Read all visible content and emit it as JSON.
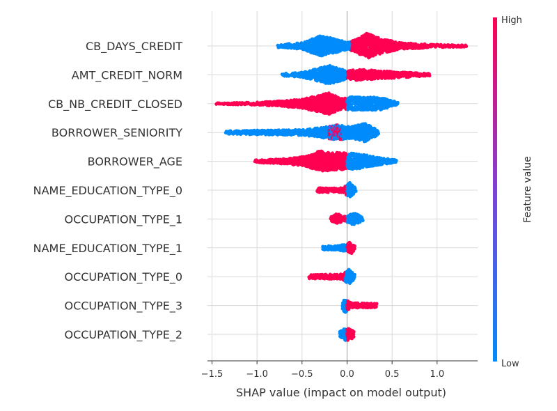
{
  "chart_data": {
    "type": "scatter",
    "subtype": "shap-beeswarm",
    "title": "",
    "xlabel": "SHAP value (impact on model output)",
    "ylabel": "",
    "xlim": [
      -1.55,
      1.45
    ],
    "xticks": [
      -1.5,
      -1.0,
      -0.5,
      0.0,
      0.5,
      1.0
    ],
    "xtick_labels": [
      "−1.5",
      "−1.0",
      "−0.5",
      "0.0",
      "0.5",
      "1.0"
    ],
    "grid": true,
    "colorbar": {
      "title": "Feature value",
      "high_label": "High",
      "low_label": "Low",
      "high_color": "#ff0052",
      "low_color": "#008bfb"
    },
    "features": [
      {
        "name": "CB_DAYS_CREDIT",
        "min": -0.77,
        "max": 1.33,
        "high_side": "positive",
        "high_range": [
          0.05,
          1.3
        ],
        "low_range": [
          -0.77,
          0.05
        ],
        "density": [
          [
            -0.77,
            0.12
          ],
          [
            -0.5,
            0.25
          ],
          [
            -0.3,
            0.8
          ],
          [
            -0.15,
            0.6
          ],
          [
            0.0,
            0.3
          ],
          [
            0.1,
            0.5
          ],
          [
            0.22,
            1.0
          ],
          [
            0.4,
            0.55
          ],
          [
            0.6,
            0.25
          ],
          [
            0.9,
            0.15
          ],
          [
            1.3,
            0.08
          ]
        ]
      },
      {
        "name": "AMT_CREDIT_NORM",
        "min": -0.72,
        "max": 0.92,
        "high_side": "positive",
        "high_range": [
          0.1,
          0.92
        ],
        "low_range": [
          -0.72,
          0.0
        ],
        "density": [
          [
            -0.72,
            0.1
          ],
          [
            -0.5,
            0.2
          ],
          [
            -0.35,
            0.45
          ],
          [
            -0.2,
            0.75
          ],
          [
            -0.1,
            0.55
          ],
          [
            0.0,
            0.3
          ],
          [
            0.1,
            0.45
          ],
          [
            0.3,
            0.35
          ],
          [
            0.55,
            0.25
          ],
          [
            0.9,
            0.1
          ]
        ]
      },
      {
        "name": "CB_NB_CREDIT_CLOSED",
        "min": -1.45,
        "max": 0.57,
        "high_side": "negative",
        "high_range": [
          -1.45,
          -0.05
        ],
        "low_range": [
          0.0,
          0.57
        ],
        "density": [
          [
            -1.45,
            0.05
          ],
          [
            -1.1,
            0.1
          ],
          [
            -0.8,
            0.18
          ],
          [
            -0.5,
            0.35
          ],
          [
            -0.35,
            0.6
          ],
          [
            -0.2,
            0.85
          ],
          [
            -0.05,
            0.4
          ],
          [
            0.05,
            0.55
          ],
          [
            0.2,
            0.5
          ],
          [
            0.35,
            0.55
          ],
          [
            0.57,
            0.1
          ]
        ]
      },
      {
        "name": "BORROWER_SENIORITY",
        "min": -1.35,
        "max": 0.35,
        "high_side": "negative",
        "high_range": [
          -0.2,
          -0.05
        ],
        "low_range": [
          -1.35,
          0.35
        ],
        "density": [
          [
            -1.35,
            0.12
          ],
          [
            -1.0,
            0.18
          ],
          [
            -0.7,
            0.2
          ],
          [
            -0.45,
            0.25
          ],
          [
            -0.3,
            0.4
          ],
          [
            -0.1,
            0.6
          ],
          [
            0.05,
            0.45
          ],
          [
            0.2,
            0.75
          ],
          [
            0.35,
            0.15
          ]
        ]
      },
      {
        "name": "BORROWER_AGE",
        "min": -1.02,
        "max": 0.55,
        "high_side": "negative",
        "high_range": [
          -1.02,
          -0.05
        ],
        "low_range": [
          0.0,
          0.55
        ],
        "density": [
          [
            -1.02,
            0.1
          ],
          [
            -0.7,
            0.2
          ],
          [
            -0.45,
            0.4
          ],
          [
            -0.3,
            0.85
          ],
          [
            -0.15,
            0.7
          ],
          [
            0.0,
            0.65
          ],
          [
            0.15,
            0.6
          ],
          [
            0.3,
            0.35
          ],
          [
            0.55,
            0.1
          ]
        ]
      },
      {
        "name": "NAME_EDUCATION_TYPE_0",
        "min": -0.33,
        "max": 0.1,
        "high_side": "negative",
        "high_range": [
          -0.33,
          -0.05
        ],
        "low_range": [
          0.0,
          0.1
        ],
        "density": [
          [
            -0.33,
            0.18
          ],
          [
            -0.15,
            0.18
          ],
          [
            -0.05,
            0.2
          ],
          [
            0.03,
            0.6
          ],
          [
            0.1,
            0.15
          ]
        ]
      },
      {
        "name": "OCCUPATION_TYPE_1",
        "min": -0.18,
        "max": 0.18,
        "high_side": "negative",
        "high_range": [
          -0.18,
          -0.05
        ],
        "low_range": [
          0.0,
          0.18
        ],
        "density": [
          [
            -0.18,
            0.15
          ],
          [
            -0.11,
            0.45
          ],
          [
            -0.05,
            0.2
          ],
          [
            0.0,
            0.25
          ],
          [
            0.08,
            0.5
          ],
          [
            0.16,
            0.2
          ]
        ]
      },
      {
        "name": "NAME_EDUCATION_TYPE_1",
        "min": -0.27,
        "max": 0.09,
        "high_side": "positive",
        "high_range": [
          0.0,
          0.09
        ],
        "low_range": [
          -0.27,
          0.0
        ],
        "density": [
          [
            -0.27,
            0.15
          ],
          [
            -0.1,
            0.18
          ],
          [
            0.0,
            0.3
          ],
          [
            0.04,
            0.55
          ],
          [
            0.09,
            0.15
          ]
        ]
      },
      {
        "name": "OCCUPATION_TYPE_0",
        "min": -0.42,
        "max": 0.09,
        "high_side": "negative",
        "high_range": [
          -0.42,
          -0.05
        ],
        "low_range": [
          -0.02,
          0.09
        ],
        "density": [
          [
            -0.42,
            0.15
          ],
          [
            -0.2,
            0.18
          ],
          [
            -0.05,
            0.2
          ],
          [
            0.02,
            0.6
          ],
          [
            0.09,
            0.15
          ]
        ]
      },
      {
        "name": "OCCUPATION_TYPE_3",
        "min": -0.05,
        "max": 0.33,
        "high_side": "positive",
        "high_range": [
          0.02,
          0.33
        ],
        "low_range": [
          -0.05,
          0.0
        ],
        "density": [
          [
            -0.05,
            0.4
          ],
          [
            -0.02,
            0.55
          ],
          [
            0.05,
            0.2
          ],
          [
            0.2,
            0.2
          ],
          [
            0.33,
            0.15
          ]
        ]
      },
      {
        "name": "OCCUPATION_TYPE_2",
        "min": -0.08,
        "max": 0.08,
        "high_side": "positive",
        "high_range": [
          0.0,
          0.08
        ],
        "low_range": [
          -0.08,
          0.0
        ],
        "density": [
          [
            -0.08,
            0.25
          ],
          [
            -0.02,
            0.5
          ],
          [
            0.03,
            0.45
          ],
          [
            0.08,
            0.2
          ]
        ]
      }
    ]
  }
}
